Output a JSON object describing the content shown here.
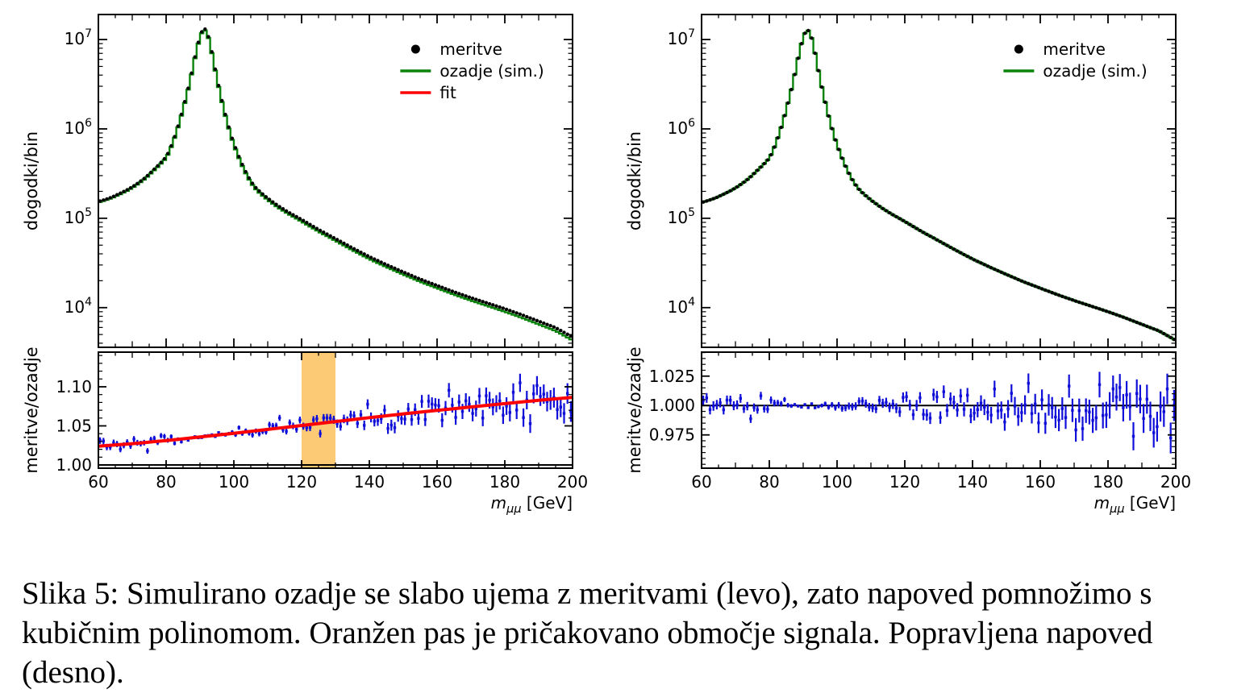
{
  "figure": {
    "caption_lines": [
      "Slika 5: Simulirano ozadje se slabo ujema z meritvami (levo), zato napoved pomnožimo s",
      "kubičnim polinomom. Oranžen pas je pričakovano območje signala. Popravljena napoved",
      "(desno)."
    ]
  },
  "colors": {
    "background_line": "#0a830a",
    "fit_line": "#ff0000",
    "data_marker": "#000000",
    "ratio_points": "#0f0fd9",
    "signal_band": "#fcca74",
    "axis": "#000000",
    "text": "#000000"
  },
  "chart_data": [
    {
      "id": "left",
      "type": "histogram+ratio",
      "xlabel": {
        "variable": "m",
        "subscript": "μμ",
        "unit": " [GeV]"
      },
      "ylabel_main": "dogodki/bin",
      "ylabel_ratio": "meritve/ozadje",
      "xlim": [
        60,
        200
      ],
      "x_major_ticks": [
        60,
        80,
        100,
        120,
        140,
        160,
        180,
        200
      ],
      "x_major_tick_labels": [
        "60",
        "80",
        "100",
        "120",
        "140",
        "160",
        "180",
        "200"
      ],
      "x_minor_step": 5,
      "bin_width_gev": 1,
      "ylog_exp_range": [
        3.556,
        7.28
      ],
      "y_major_decades": [
        4,
        5,
        6,
        7
      ],
      "background_hist_anchors": [
        [
          60,
          150000
        ],
        [
          62,
          158000
        ],
        [
          64,
          168000
        ],
        [
          66,
          182000
        ],
        [
          68,
          198000
        ],
        [
          70,
          218000
        ],
        [
          72,
          245000
        ],
        [
          74,
          280000
        ],
        [
          76,
          330000
        ],
        [
          78,
          390000
        ],
        [
          80,
          470000
        ],
        [
          81,
          560000
        ],
        [
          82,
          700000
        ],
        [
          83,
          900000
        ],
        [
          84,
          1200000
        ],
        [
          85,
          1650000
        ],
        [
          86,
          2300000
        ],
        [
          87,
          3300000
        ],
        [
          88,
          5000000
        ],
        [
          89,
          7600000
        ],
        [
          90,
          10600000
        ],
        [
          91,
          13000000
        ],
        [
          92,
          12200000
        ],
        [
          93,
          8800000
        ],
        [
          94,
          5600000
        ],
        [
          95,
          3600000
        ],
        [
          96,
          2400000
        ],
        [
          97,
          1650000
        ],
        [
          98,
          1180000
        ],
        [
          99,
          860000
        ],
        [
          100,
          660000
        ],
        [
          102,
          420000
        ],
        [
          104,
          290000
        ],
        [
          106,
          220000
        ],
        [
          108,
          185000
        ],
        [
          110,
          160000
        ],
        [
          113,
          132000
        ],
        [
          116,
          112000
        ],
        [
          120,
          92000
        ],
        [
          125,
          71000
        ],
        [
          130,
          56000
        ],
        [
          135,
          44000
        ],
        [
          140,
          35000
        ],
        [
          145,
          28500
        ],
        [
          150,
          23500
        ],
        [
          155,
          19500
        ],
        [
          160,
          16500
        ],
        [
          165,
          14000
        ],
        [
          170,
          12000
        ],
        [
          175,
          10400
        ],
        [
          180,
          9000
        ],
        [
          185,
          7700
        ],
        [
          190,
          6500
        ],
        [
          195,
          5500
        ],
        [
          200,
          4300
        ]
      ],
      "ratio_trend_anchors": [
        [
          60,
          1.024
        ],
        [
          70,
          1.0272
        ],
        [
          80,
          1.0312
        ],
        [
          90,
          1.0358
        ],
        [
          100,
          1.0405
        ],
        [
          110,
          1.0455
        ],
        [
          120,
          1.0505
        ],
        [
          130,
          1.0555
        ],
        [
          140,
          1.0605
        ],
        [
          150,
          1.0653
        ],
        [
          160,
          1.0698
        ],
        [
          170,
          1.0742
        ],
        [
          180,
          1.0785
        ],
        [
          190,
          1.0827
        ],
        [
          200,
          1.0865
        ]
      ],
      "legend": [
        {
          "label": "meritve",
          "marker": "dot",
          "color_key": "data_marker"
        },
        {
          "label": "ozadje (sim.)",
          "marker": "line",
          "color_key": "background_line"
        },
        {
          "label": "fit",
          "marker": "line",
          "color_key": "fit_line"
        }
      ],
      "ratio": {
        "ylim": [
          0.9959,
          1.1443
        ],
        "major_ticks": [
          1.0,
          1.05,
          1.1
        ],
        "major_tick_labels": [
          "1.00",
          "1.05",
          "1.10"
        ],
        "minor_step": 0.01,
        "reference_line": 1.0,
        "show_fit_curve": true,
        "signal_band_gev": [
          120,
          130
        ],
        "error_anchors": [
          [
            60,
            0.0042
          ],
          [
            70,
            0.0038
          ],
          [
            80,
            0.0032
          ],
          [
            85,
            0.002
          ],
          [
            88,
            0.0012
          ],
          [
            91,
            0.0008
          ],
          [
            94,
            0.0012
          ],
          [
            97,
            0.002
          ],
          [
            100,
            0.0026
          ],
          [
            105,
            0.0032
          ],
          [
            110,
            0.0036
          ],
          [
            120,
            0.0044
          ],
          [
            130,
            0.0052
          ],
          [
            140,
            0.0063
          ],
          [
            150,
            0.0075
          ],
          [
            160,
            0.0088
          ],
          [
            170,
            0.01
          ],
          [
            180,
            0.0112
          ],
          [
            190,
            0.0122
          ],
          [
            200,
            0.0133
          ]
        ],
        "scatter_scale": 1.2,
        "noise_seed": 20250
      }
    },
    {
      "id": "right",
      "type": "histogram+ratio",
      "xlabel": {
        "variable": "m",
        "subscript": "μμ",
        "unit": " [GeV]"
      },
      "ylabel_main": "dogodki/bin",
      "ylabel_ratio": "meritve/ozadje",
      "xlim": [
        60,
        200
      ],
      "x_major_ticks": [
        60,
        80,
        100,
        120,
        140,
        160,
        180,
        200
      ],
      "x_major_tick_labels": [
        "60",
        "80",
        "100",
        "120",
        "140",
        "160",
        "180",
        "200"
      ],
      "x_minor_step": 5,
      "bin_width_gev": 1,
      "ylog_exp_range": [
        3.556,
        7.28
      ],
      "y_major_decades": [
        4,
        5,
        6,
        7
      ],
      "background_hist_anchors": [
        [
          60,
          150000
        ],
        [
          62,
          158000
        ],
        [
          64,
          168000
        ],
        [
          66,
          182000
        ],
        [
          68,
          198000
        ],
        [
          70,
          218000
        ],
        [
          72,
          245000
        ],
        [
          74,
          280000
        ],
        [
          76,
          330000
        ],
        [
          78,
          390000
        ],
        [
          80,
          470000
        ],
        [
          81,
          560000
        ],
        [
          82,
          700000
        ],
        [
          83,
          900000
        ],
        [
          84,
          1200000
        ],
        [
          85,
          1650000
        ],
        [
          86,
          2300000
        ],
        [
          87,
          3300000
        ],
        [
          88,
          5000000
        ],
        [
          89,
          7600000
        ],
        [
          90,
          10600000
        ],
        [
          91,
          13000000
        ],
        [
          92,
          12200000
        ],
        [
          93,
          8800000
        ],
        [
          94,
          5600000
        ],
        [
          95,
          3600000
        ],
        [
          96,
          2400000
        ],
        [
          97,
          1650000
        ],
        [
          98,
          1180000
        ],
        [
          99,
          860000
        ],
        [
          100,
          660000
        ],
        [
          102,
          420000
        ],
        [
          104,
          290000
        ],
        [
          106,
          220000
        ],
        [
          108,
          185000
        ],
        [
          110,
          160000
        ],
        [
          113,
          132000
        ],
        [
          116,
          112000
        ],
        [
          120,
          92000
        ],
        [
          125,
          71000
        ],
        [
          130,
          56000
        ],
        [
          135,
          44000
        ],
        [
          140,
          35000
        ],
        [
          145,
          28500
        ],
        [
          150,
          23500
        ],
        [
          155,
          19500
        ],
        [
          160,
          16500
        ],
        [
          165,
          14000
        ],
        [
          170,
          12000
        ],
        [
          175,
          10400
        ],
        [
          180,
          9000
        ],
        [
          185,
          7700
        ],
        [
          190,
          6500
        ],
        [
          195,
          5500
        ],
        [
          200,
          4300
        ]
      ],
      "ratio_trend_anchors": [
        [
          60,
          1.0
        ],
        [
          200,
          1.0
        ]
      ],
      "legend": [
        {
          "label": "meritve",
          "marker": "dot",
          "color_key": "data_marker"
        },
        {
          "label": "ozadje (sim.)",
          "marker": "line",
          "color_key": "background_line"
        }
      ],
      "ratio": {
        "ylim": [
          0.9467,
          1.0454
        ],
        "major_ticks": [
          0.975,
          1.0,
          1.025
        ],
        "major_tick_labels": [
          "0.975",
          "1.000",
          "1.025"
        ],
        "minor_step": 0.005,
        "reference_line": 1.0,
        "show_fit_curve": false,
        "signal_band_gev": null,
        "error_anchors": [
          [
            60,
            0.0042
          ],
          [
            70,
            0.0038
          ],
          [
            80,
            0.0032
          ],
          [
            85,
            0.002
          ],
          [
            88,
            0.0012
          ],
          [
            91,
            0.0008
          ],
          [
            94,
            0.0012
          ],
          [
            97,
            0.002
          ],
          [
            100,
            0.0026
          ],
          [
            105,
            0.0032
          ],
          [
            110,
            0.0036
          ],
          [
            120,
            0.0044
          ],
          [
            130,
            0.0052
          ],
          [
            140,
            0.0063
          ],
          [
            150,
            0.0075
          ],
          [
            160,
            0.0088
          ],
          [
            170,
            0.01
          ],
          [
            180,
            0.0112
          ],
          [
            190,
            0.0122
          ],
          [
            200,
            0.0133
          ]
        ],
        "scatter_scale": 1.2,
        "noise_seed": 777
      }
    }
  ]
}
